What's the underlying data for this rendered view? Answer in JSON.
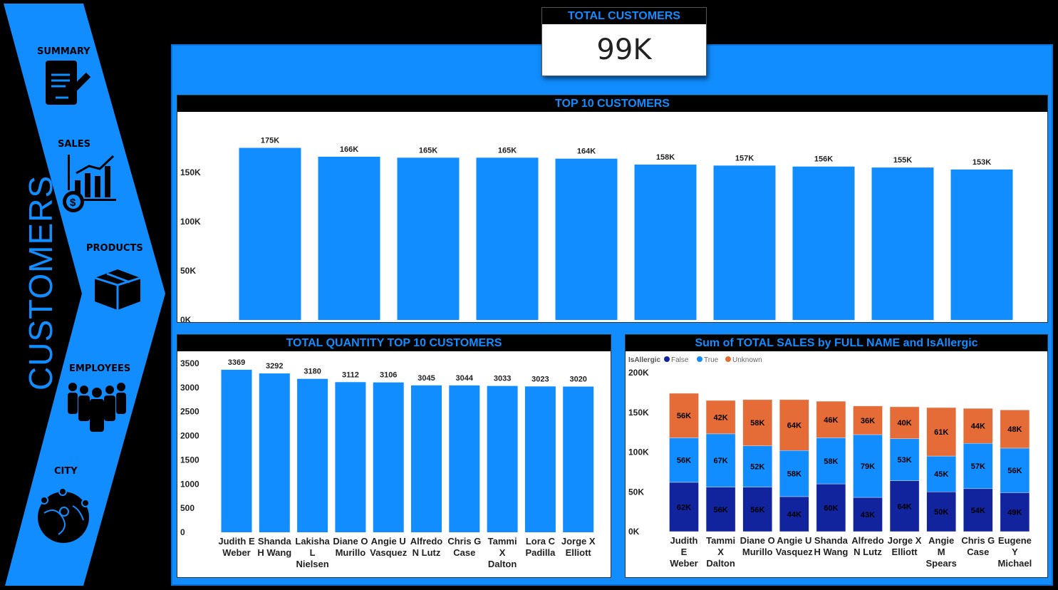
{
  "nav": {
    "title": "CUSTOMERS",
    "items": [
      {
        "label": "SUMMARY",
        "icon": "document-pen-icon"
      },
      {
        "label": "SALES",
        "icon": "sales-chart-icon"
      },
      {
        "label": "PRODUCTS",
        "icon": "box-icon"
      },
      {
        "label": "EMPLOYEES",
        "icon": "people-icon"
      },
      {
        "label": "CITY",
        "icon": "globe-pins-icon"
      }
    ]
  },
  "kpi": {
    "title": "TOTAL CUSTOMERS",
    "value": "99K"
  },
  "colors": {
    "accent": "#118DFF",
    "false": "#12239E",
    "true": "#118DFF",
    "unknown": "#E66C37"
  },
  "chart_data": [
    {
      "type": "bar",
      "title": "TOP 10 CUSTOMERS",
      "ylim": [
        0,
        175000
      ],
      "yticks": [
        "0K",
        "50K",
        "100K",
        "150K"
      ],
      "categories": [
        "Judith E Weber",
        "Tammi X Dalton",
        "Diane O Murillo",
        "Angie U Vasquez",
        "Shanda H Wang",
        "Alfredo N Lutz",
        "Jorge X Elliott",
        "Angie M Spears",
        "Chris G Case",
        "Eugene Y Michael"
      ],
      "values": [
        175000,
        166000,
        165000,
        165000,
        164000,
        158000,
        157000,
        156000,
        155000,
        153000
      ],
      "labels": [
        "175K",
        "166K",
        "165K",
        "165K",
        "164K",
        "158K",
        "157K",
        "156K",
        "155K",
        "153K"
      ]
    },
    {
      "type": "bar",
      "title": "TOTAL QUANTITY TOP 10 CUSTOMERS",
      "ylim": [
        0,
        3500
      ],
      "yticks": [
        "0",
        "500",
        "1000",
        "1500",
        "2000",
        "2500",
        "3000",
        "3500"
      ],
      "categories": [
        "Judith E Weber",
        "Shanda H Wang",
        "Lakisha L Nielsen",
        "Diane O Murillo",
        "Angie U Vasquez",
        "Alfredo N Lutz",
        "Chris G Case",
        "Tammi X Dalton",
        "Lora C Padilla",
        "Jorge X Elliott"
      ],
      "values": [
        3369,
        3292,
        3180,
        3112,
        3106,
        3045,
        3044,
        3033,
        3023,
        3020
      ]
    },
    {
      "type": "bar",
      "stacked": true,
      "title": "Sum of TOTAL SALES by FULL NAME and IsAllergic",
      "legend_title": "IsAllergic",
      "legend": "top-left",
      "ylim": [
        0,
        200000
      ],
      "yticks": [
        "0K",
        "50K",
        "100K",
        "150K",
        "200K"
      ],
      "categories": [
        "Judith E Weber",
        "Tammi X Dalton",
        "Diane O Murillo",
        "Angie U Vasquez",
        "Shanda H Wang",
        "Alfredo N Lutz",
        "Jorge X Elliott",
        "Angie M Spears",
        "Chris G Case",
        "Eugene Y Michael"
      ],
      "series": [
        {
          "name": "False",
          "color": "#12239E",
          "values": [
            62,
            56,
            56,
            44,
            60,
            43,
            64,
            50,
            54,
            49
          ]
        },
        {
          "name": "True",
          "color": "#118DFF",
          "values": [
            56,
            67,
            52,
            58,
            58,
            79,
            53,
            45,
            57,
            56
          ]
        },
        {
          "name": "Unknown",
          "color": "#E66C37",
          "values": [
            56,
            42,
            58,
            64,
            46,
            36,
            40,
            61,
            44,
            48
          ]
        }
      ],
      "unit": "K"
    }
  ]
}
